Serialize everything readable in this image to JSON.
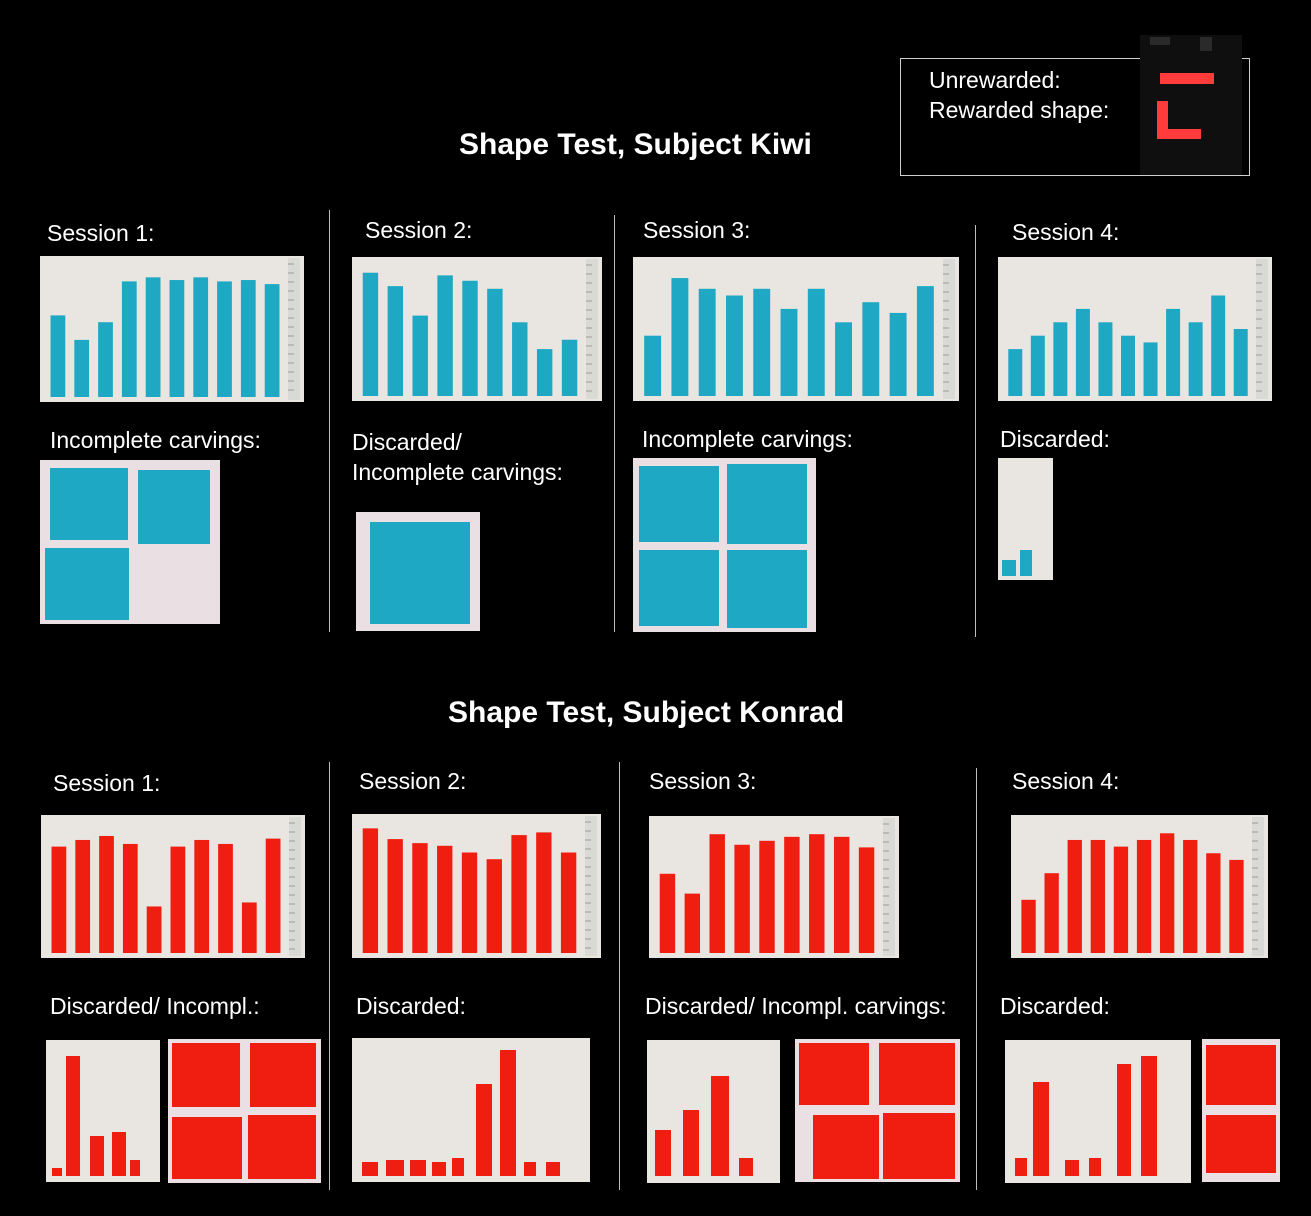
{
  "legend": {
    "unrewarded_label": "Unrewarded:",
    "rewarded_label": "Rewarded shape:",
    "shape_color": "#ff3b3b"
  },
  "kiwi": {
    "title": "Shape Test, Subject Kiwi",
    "color": "#1fa8c4",
    "sessions": [
      {
        "label": "Session 1:",
        "bottom_label": "Incomplete carvings:"
      },
      {
        "label": "Session 2:",
        "bottom_label": "Discarded/\nIncomplete carvings:"
      },
      {
        "label": "Session 3:",
        "bottom_label": "Incomplete carvings:"
      },
      {
        "label": "Session 4:",
        "bottom_label": "Discarded:"
      }
    ]
  },
  "konrad": {
    "title": "Shape Test, Subject Konrad",
    "color": "#f01e10",
    "sessions": [
      {
        "label": "Session 1:",
        "bottom_label": "Discarded/ Incompl.:"
      },
      {
        "label": "Session 2:",
        "bottom_label": "Discarded:"
      },
      {
        "label": "Session 3:",
        "bottom_label": "Discarded/ Incompl. carvings:"
      },
      {
        "label": "Session 4:",
        "bottom_label": "Discarded:"
      }
    ]
  }
}
